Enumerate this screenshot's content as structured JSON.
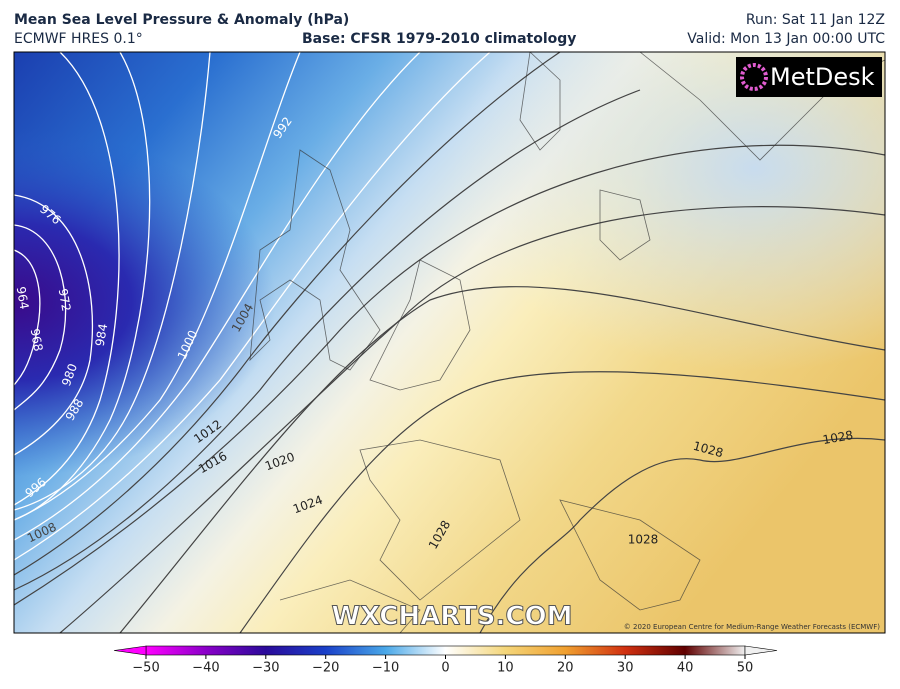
{
  "header": {
    "title": "Mean Sea Level Pressure & Anomaly (hPa)",
    "model": "ECMWF HRES 0.1°",
    "base": "Base: CFSR 1979-2010 climatology",
    "run": "Run: Sat 11 Jan 12Z",
    "valid": "Valid: Mon 13 Jan 00:00 UTC"
  },
  "logo": "MetDesk",
  "watermark": "WXCHARTS.COM",
  "copyright": "© 2020 European Centre for Medium-Range Weather Forecasts (ECMWF)",
  "map": {
    "contour_labels": [
      992,
      976,
      964,
      972,
      968,
      984,
      980,
      988,
      996,
      1008,
      1000,
      1004,
      1012,
      1016,
      1020,
      1024,
      1028,
      1028,
      1028,
      1028
    ]
  },
  "colorbar": {
    "lim": [
      -50,
      50
    ],
    "ticks": [
      {
        "value": -50,
        "label": "−50"
      },
      {
        "value": -40,
        "label": "−40"
      },
      {
        "value": -30,
        "label": "−30"
      },
      {
        "value": -20,
        "label": "−20"
      },
      {
        "value": -10,
        "label": "−10"
      },
      0,
      10,
      20,
      30,
      40,
      50
    ]
  }
}
